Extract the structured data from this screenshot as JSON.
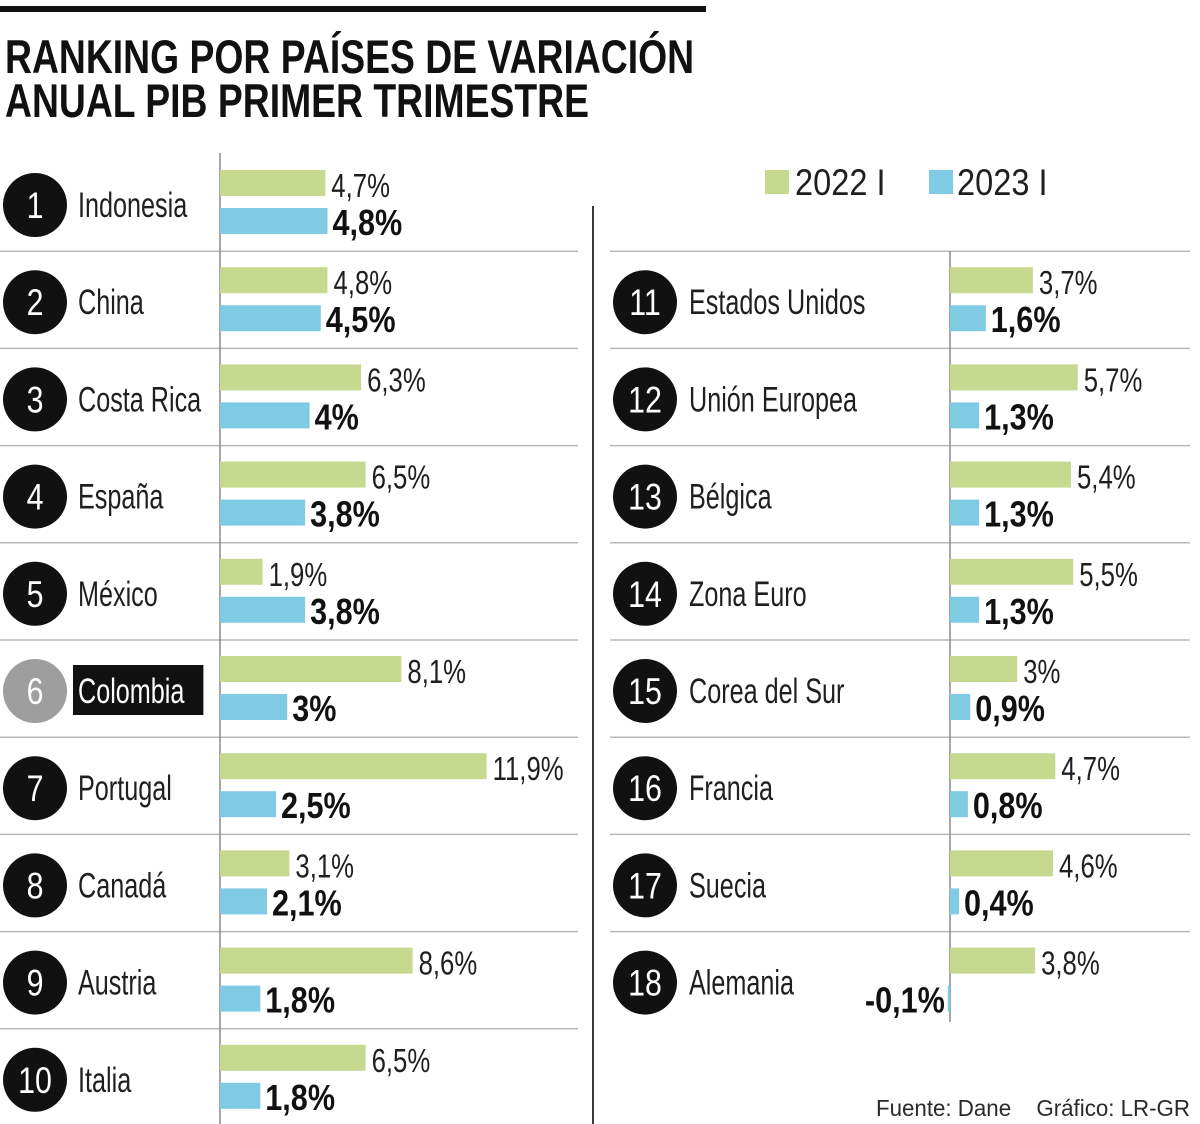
{
  "chart_data": {
    "type": "bar",
    "orientation": "horizontal",
    "title": "RANKING POR PAÍSES DE VARIACIÓN ANUAL PIB PRIMER TRIMESTRE",
    "categories": [
      "Indonesia",
      "China",
      "Costa Rica",
      "España",
      "México",
      "Colombia",
      "Portugal",
      "Canadá",
      "Austria",
      "Italia",
      "Estados Unidos",
      "Unión Europea",
      "Bélgica",
      "Zona Euro",
      "Corea del Sur",
      "Francia",
      "Suecia",
      "Alemania"
    ],
    "ranks": [
      1,
      2,
      3,
      4,
      5,
      6,
      7,
      8,
      9,
      10,
      11,
      12,
      13,
      14,
      15,
      16,
      17,
      18
    ],
    "highlight_rank": 6,
    "series": [
      {
        "name": "2022 I",
        "color": "#c6d98e",
        "values": [
          4.7,
          4.8,
          6.3,
          6.5,
          1.9,
          8.1,
          11.9,
          3.1,
          8.6,
          6.5,
          3.7,
          5.7,
          5.4,
          5.5,
          3,
          4.7,
          4.6,
          3.8
        ],
        "labels": [
          "4,7%",
          "4,8%",
          "6,3%",
          "6,5%",
          "1,9%",
          "8,1%",
          "11,9%",
          "3,1%",
          "8,6%",
          "6,5%",
          "3,7%",
          "5,7%",
          "5,4%",
          "5,5%",
          "3%",
          "4,7%",
          "4,6%",
          "3,8%"
        ]
      },
      {
        "name": "2023 I",
        "color": "#7ecbe3",
        "values": [
          4.8,
          4.5,
          4,
          3.8,
          3.8,
          3,
          2.5,
          2.1,
          1.8,
          1.8,
          1.6,
          1.3,
          1.3,
          1.3,
          0.9,
          0.8,
          0.4,
          -0.1
        ],
        "labels": [
          "4,8%",
          "4,5%",
          "4%",
          "3,8%",
          "3,8%",
          "3%",
          "2,5%",
          "2,1%",
          "1,8%",
          "1,8%",
          "1,6%",
          "1,3%",
          "1,3%",
          "1,3%",
          "0,9%",
          "0,8%",
          "0,4%",
          "-0,1%"
        ]
      }
    ],
    "legend_position": "top-right",
    "grid": false
  },
  "footer": {
    "source": "Fuente: Dane",
    "credit": "Gráfico: LR-GR"
  },
  "colors": {
    "rank_badge": "#111111",
    "highlight_badge": "#9e9e9e",
    "highlight_label_bg": "#111111"
  }
}
